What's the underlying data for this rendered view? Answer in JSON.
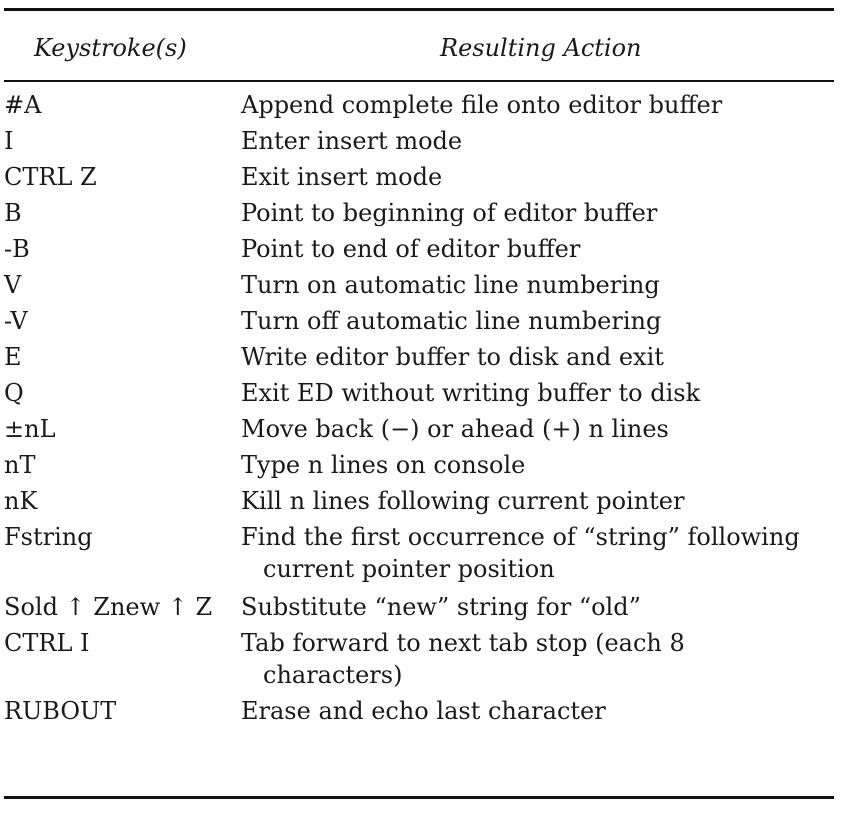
{
  "table": {
    "header": {
      "keystroke": "Keystroke(s)",
      "action": "Resulting Action"
    },
    "rows": [
      {
        "keystroke": "#A",
        "action": "Append complete file onto editor buffer"
      },
      {
        "keystroke": "I",
        "action": "Enter insert mode"
      },
      {
        "keystroke": "CTRL Z",
        "action": "Exit insert mode"
      },
      {
        "keystroke": "B",
        "action": "Point to beginning of editor buffer"
      },
      {
        "keystroke": "-B",
        "action": "Point to end of editor buffer"
      },
      {
        "keystroke": "V",
        "action": "Turn on automatic line numbering"
      },
      {
        "keystroke": "-V",
        "action": "Turn off automatic line numbering"
      },
      {
        "keystroke": "E",
        "action": "Write editor buffer to disk and exit"
      },
      {
        "keystroke": "Q",
        "action": "Exit ED without writing buffer to disk"
      },
      {
        "keystroke": "±nL",
        "action": "Move back (−) or ahead (+) n lines"
      },
      {
        "keystroke": "nT",
        "action": "Type n lines on console"
      },
      {
        "keystroke": "nK",
        "action": "Kill n lines following current pointer"
      },
      {
        "keystroke": "Fstring",
        "action": "Find the first occurrence of “string” following current pointer position"
      },
      {
        "keystroke": "Sold ↑ Znew ↑ Z",
        "action": "Substitute “new” string for “old”"
      },
      {
        "keystroke": "CTRL I",
        "action": "Tab forward to next tab stop (each 8 characters)"
      },
      {
        "keystroke": "RUBOUT",
        "action": "Erase and echo last character"
      }
    ]
  }
}
